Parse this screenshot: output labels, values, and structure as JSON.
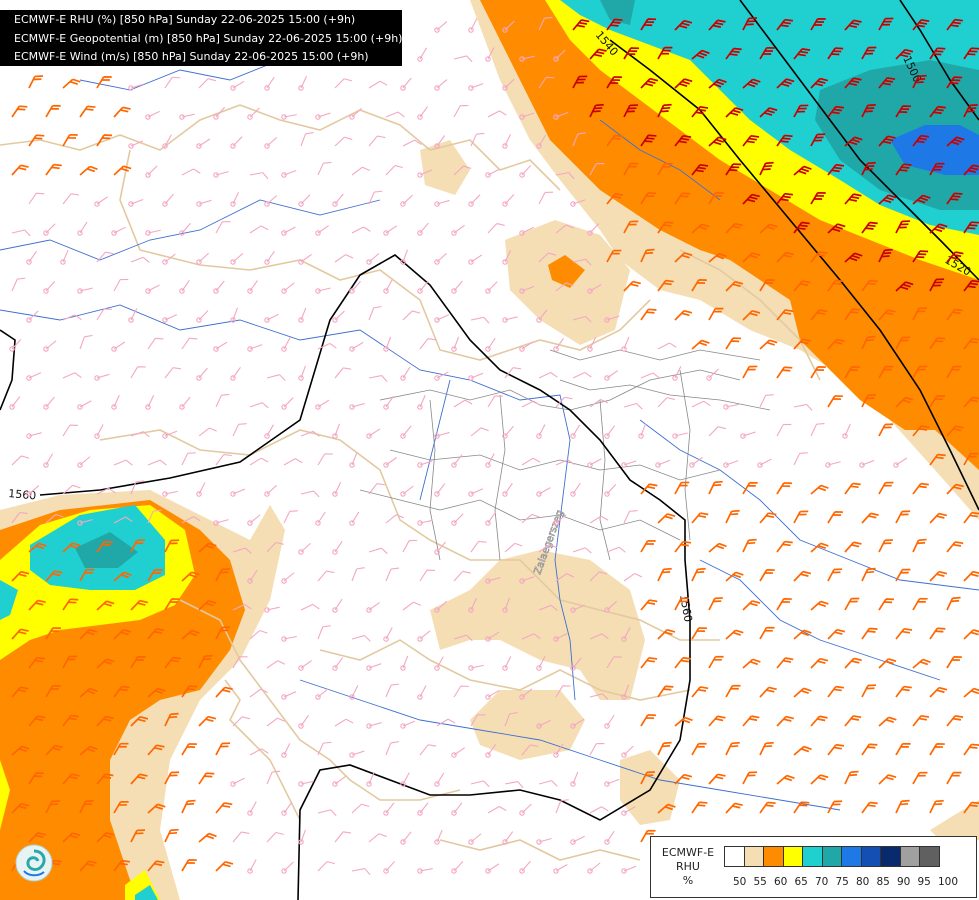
{
  "header": {
    "lines": [
      "ECMWF-E RHU (%) [850 hPa] Sunday 22-06-2025 15:00 (+9h)",
      "ECMWF-E Geopotential (m) [850 hPa] Sunday 22-06-2025 15:00 (+9h)",
      "ECMWF-E Wind (m/s) [850 hPa] Sunday 22-06-2025 15:00 (+9h)"
    ]
  },
  "contour_labels": [
    "1540",
    "1500",
    "1520",
    "1560",
    "1560"
  ],
  "city_label": "Zalaegerszeg",
  "legend": {
    "title_lines": [
      "ECMWF-E",
      "RHU",
      "%"
    ],
    "ticks": [
      "50",
      "55",
      "60",
      "65",
      "70",
      "75",
      "80",
      "85",
      "90",
      "95",
      "100"
    ],
    "colors": [
      "#ffffff",
      "#f5deb3",
      "#ff8c00",
      "#ffff00",
      "#20d0d0",
      "#20a8a8",
      "#1e78e6",
      "#1450b4",
      "#0a2a6e",
      "#a0a0a0",
      "#606060"
    ]
  },
  "colors": {
    "wind_low": "#f4a7c3",
    "wind_mid": "#ff6600",
    "wind_high": "#c80000",
    "border": "#e3c9a0",
    "river": "#3f6fd0",
    "county": "#777777",
    "geopotential": "#000000"
  },
  "icons": {
    "logo": "swirl-logo-icon"
  }
}
